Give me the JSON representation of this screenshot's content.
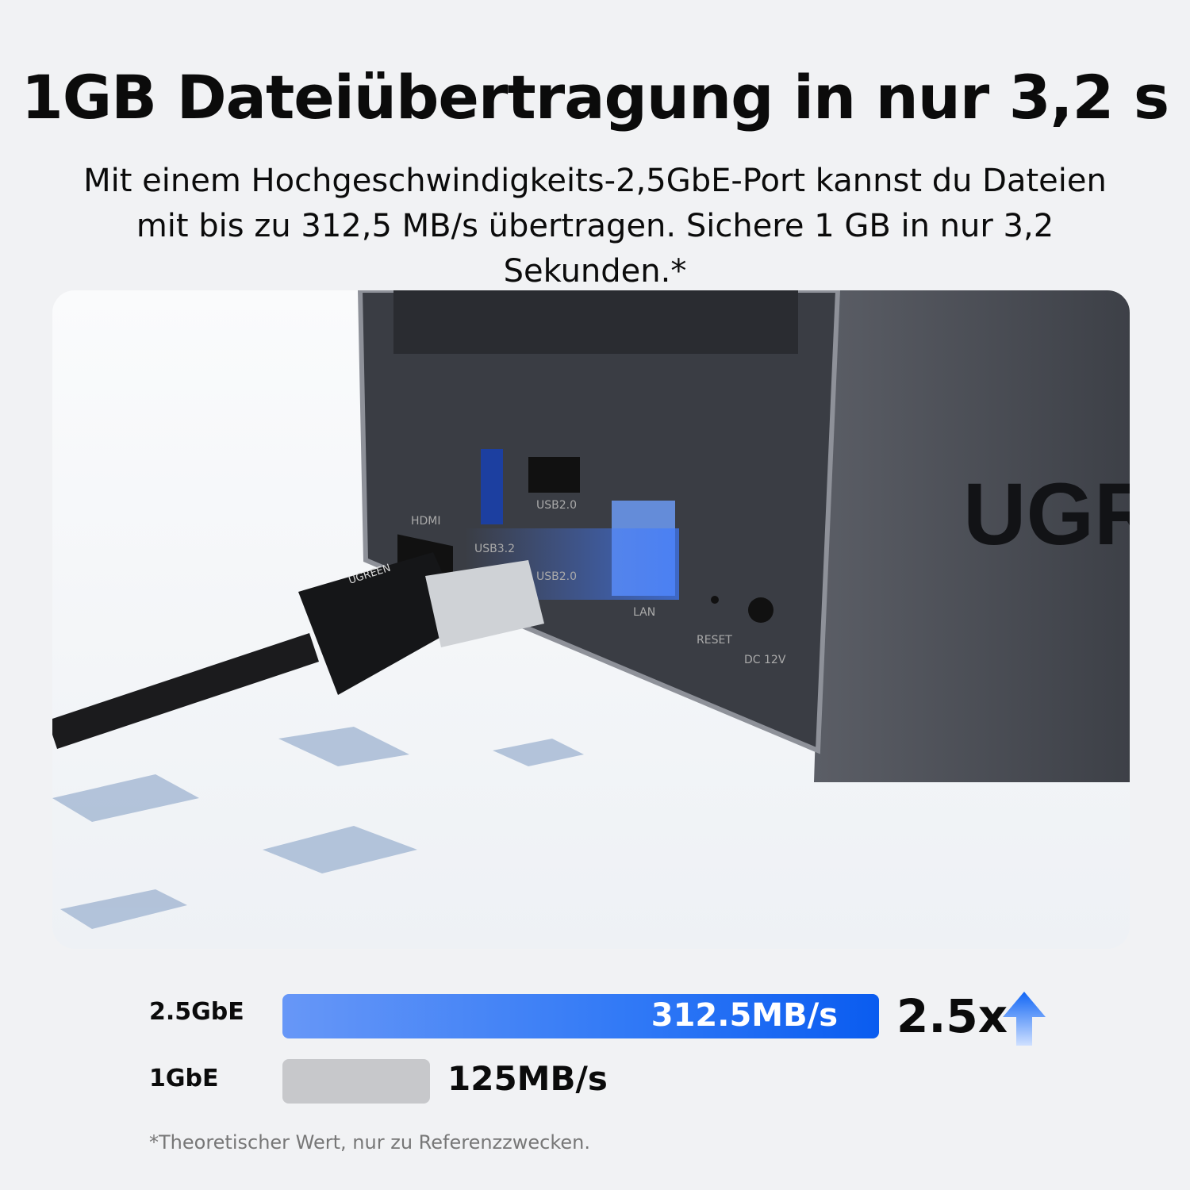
{
  "header": {
    "title": "1GB Dateiübertragung in nur 3,2 s",
    "subtitle": "Mit einem Hochgeschwindigkeits-2,5GbE-Port kannst du Dateien mit bis zu 312,5 MB/s übertragen. Sichere 1 GB in nur 3,2 Sekunden.*"
  },
  "device": {
    "brand": "UGR",
    "ports": [
      "HDMI",
      "USB3.2",
      "USB2.0",
      "USB2.0",
      "LAN",
      "RESET",
      "DC 12V"
    ],
    "cable_brand": "UGREEN"
  },
  "comparison": {
    "rows": [
      {
        "label": "2.5GbE",
        "value": "312.5MB/s",
        "speed": 312.5,
        "color": "#2f78f6"
      },
      {
        "label": "1GbE",
        "value": "125MB/s",
        "speed": 125,
        "color": "#c7c8cb"
      }
    ],
    "multiplier": "2.5x",
    "arrow_icon": "arrow-up-icon"
  },
  "footnote": "*Theoretischer Wert, nur zu Referenzzwecken."
}
